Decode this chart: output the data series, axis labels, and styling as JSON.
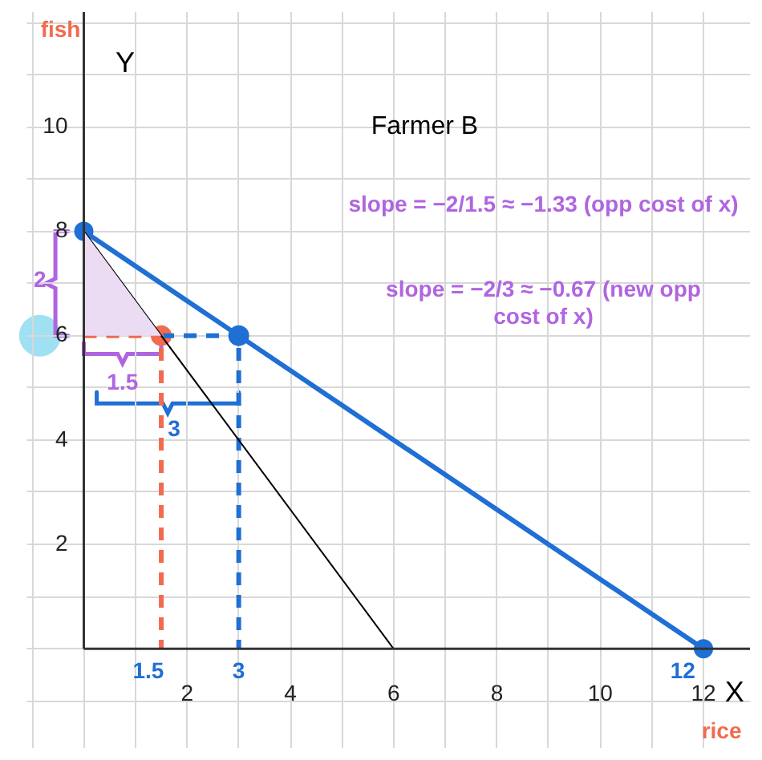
{
  "chart_data": {
    "type": "line",
    "title": "Farmer B",
    "xlabel": "X",
    "ylabel": "Y",
    "xlim": [
      -1.1,
      12.9
    ],
    "ylim": [
      -1.9,
      12.2
    ],
    "xticks": [
      {
        "value": -1,
        "label": null
      },
      {
        "value": 0,
        "label": null
      },
      {
        "value": 1,
        "label": null
      },
      2,
      {
        "value": 3,
        "label": null
      },
      4,
      {
        "value": 5,
        "label": null
      },
      6,
      {
        "value": 7,
        "label": null
      },
      8,
      {
        "value": 9,
        "label": null
      },
      10,
      {
        "value": 11,
        "label": null
      },
      12
    ],
    "yticks": [
      {
        "value": -1,
        "label": null
      },
      {
        "value": 0,
        "label": null
      },
      {
        "value": 1,
        "label": null
      },
      2,
      {
        "value": 3,
        "label": null
      },
      4,
      {
        "value": 5,
        "label": null
      },
      6,
      {
        "value": 7,
        "label": null
      },
      8,
      {
        "value": 9,
        "label": null
      },
      10,
      {
        "value": 11,
        "label": null
      },
      {
        "value": 12,
        "label": null
      }
    ],
    "grid": true,
    "legend": false,
    "series": [
      {
        "type": "area",
        "x": [
          0,
          0,
          1.5
        ],
        "values": [
          8,
          6,
          6
        ],
        "color": "#ecdcf3"
      },
      {
        "x": [
          0,
          6
        ],
        "values": [
          8,
          0
        ],
        "color": "#000000",
        "marker": "none"
      },
      {
        "x": [
          0,
          12
        ],
        "values": [
          8,
          0
        ],
        "color": "#1f6fd4",
        "marker": "circle"
      },
      {
        "x": [
          0,
          1.5,
          1.5
        ],
        "values": [
          6,
          6,
          0
        ],
        "color": "#f26b4f",
        "line_style": "dashed",
        "marker": "none"
      },
      {
        "x": [
          1.5,
          3,
          3
        ],
        "values": [
          6,
          6,
          0
        ],
        "color": "#1f6fd4",
        "line_style": "dashed",
        "marker": "none"
      },
      {
        "type": "scatter",
        "x": [
          1.5
        ],
        "values": [
          6
        ],
        "color": "#f26b4f",
        "marker": "circle"
      },
      {
        "type": "scatter",
        "x": [
          3
        ],
        "values": [
          6
        ],
        "color": "#1f6fd4",
        "marker": "circle"
      }
    ],
    "annotations": [
      "fish",
      "rice",
      "slope = −2/1.5 ≈ −1.33 (opp cost of x)",
      "slope = −2/3 ≈ −0.67 (new opp\ncost of x)",
      "2",
      {
        "text": "1.5",
        "x": 0.75,
        "y": 6
      },
      "3",
      "1.5",
      "3",
      "12"
    ]
  }
}
